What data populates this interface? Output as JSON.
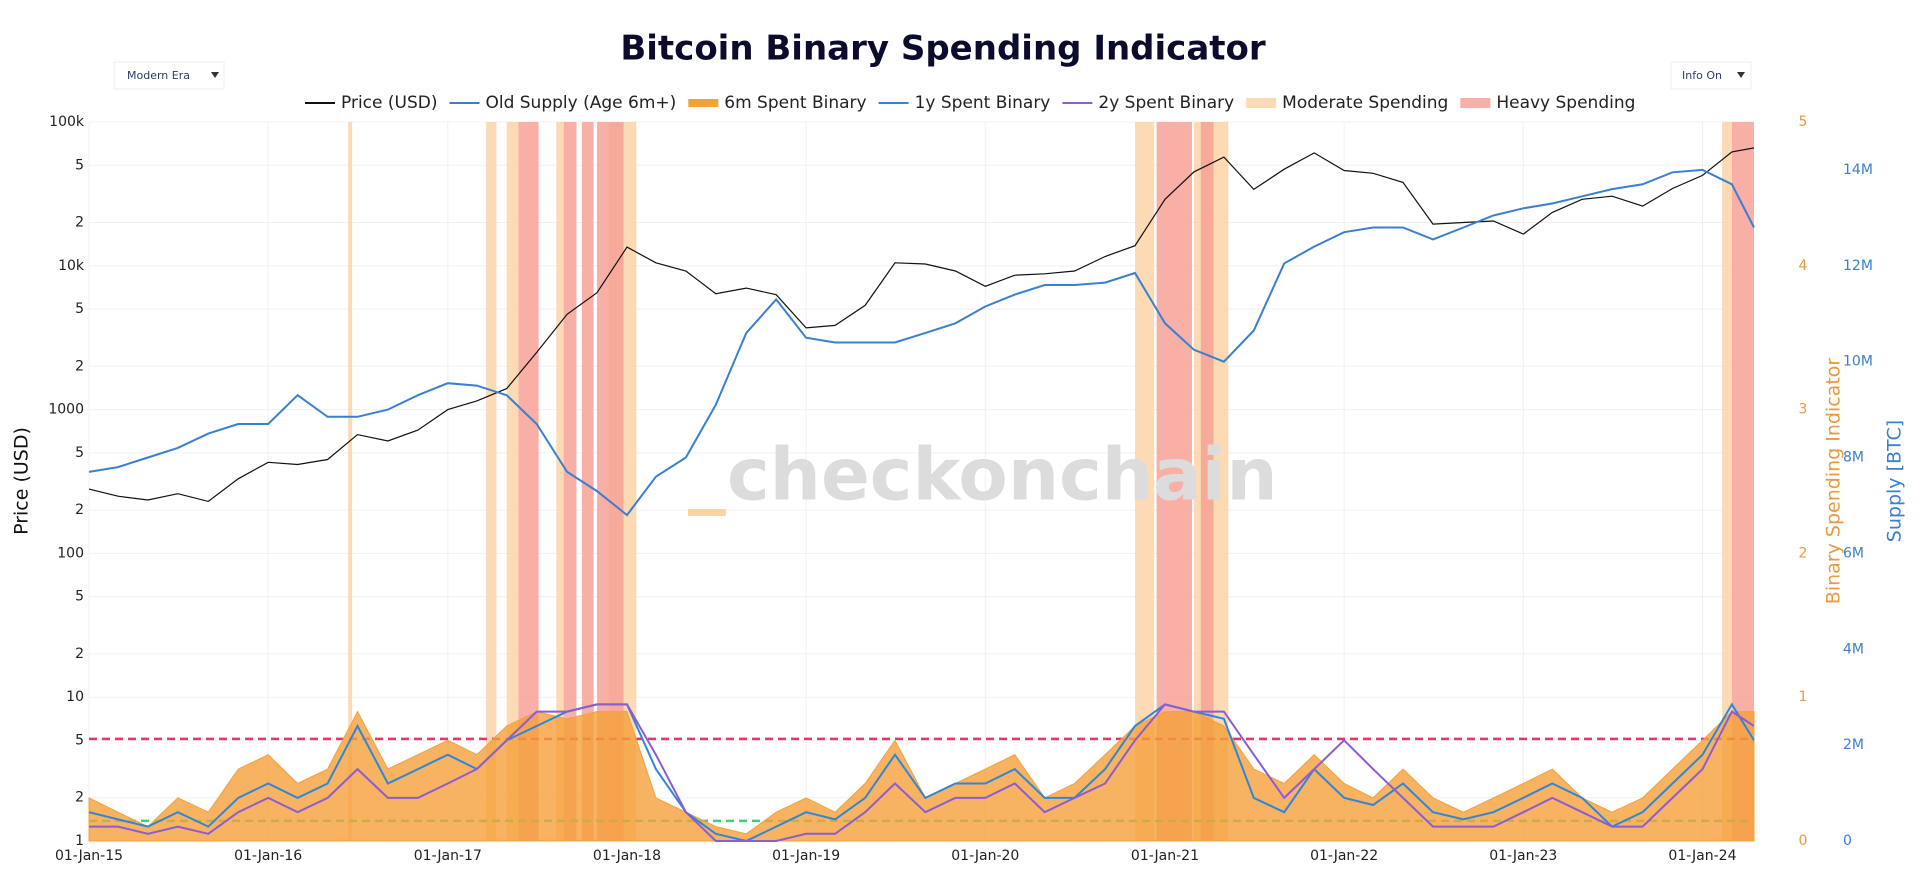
{
  "chart_data": {
    "type": "line",
    "title": "Bitcoin Binary Spending Indicator",
    "watermark": "checkonchain",
    "controls": [
      "Modern Era",
      "Info On"
    ],
    "y_label": "Price (USD)",
    "y2_label": "Binary Spending Indicator",
    "y3_label": "Supply [BTC]",
    "log_y": true,
    "grid": true,
    "xlim": [
      "2015-01-01",
      "2024-04-15"
    ],
    "xticks": [
      {
        "value": "2015-01-01",
        "label": "01-Jan-15"
      },
      {
        "value": "2016-01-01",
        "label": "01-Jan-16"
      },
      {
        "value": "2017-01-01",
        "label": "01-Jan-17"
      },
      {
        "value": "2018-01-01",
        "label": "01-Jan-18"
      },
      {
        "value": "2019-01-01",
        "label": "01-Jan-19"
      },
      {
        "value": "2020-01-01",
        "label": "01-Jan-20"
      },
      {
        "value": "2021-01-01",
        "label": "01-Jan-21"
      },
      {
        "value": "2022-01-01",
        "label": "01-Jan-22"
      },
      {
        "value": "2023-01-01",
        "label": "01-Jan-23"
      },
      {
        "value": "2024-01-01",
        "label": "01-Jan-24"
      }
    ],
    "ylim": [
      1,
      100000
    ],
    "yticks": [
      {
        "value": 100000,
        "label": "100k"
      },
      {
        "value": 50000,
        "label": "5"
      },
      {
        "value": 20000,
        "label": "2"
      },
      {
        "value": 10000,
        "label": "10k"
      },
      {
        "value": 5000,
        "label": "5"
      },
      {
        "value": 2000,
        "label": "2"
      },
      1000,
      {
        "value": 500,
        "label": "5"
      },
      {
        "value": 200,
        "label": "2"
      },
      100,
      {
        "value": 50,
        "label": "5"
      },
      {
        "value": 20,
        "label": "2"
      },
      10,
      5,
      2,
      1
    ],
    "y2lim": [
      0,
      5
    ],
    "y2ticks": [
      0,
      1,
      2,
      3,
      4,
      5
    ],
    "y2_color": "#e89a3c",
    "y3lim": [
      0,
      15000000
    ],
    "y3ticks": [
      {
        "value": 0,
        "label": "0"
      },
      {
        "value": 2000000,
        "label": "2M"
      },
      {
        "value": 4000000,
        "label": "4M"
      },
      {
        "value": 6000000,
        "label": "6M"
      },
      {
        "value": 8000000,
        "label": "8M"
      },
      {
        "value": 10000000,
        "label": "10M"
      },
      {
        "value": 12000000,
        "label": "12M"
      },
      {
        "value": 14000000,
        "label": "14M"
      }
    ],
    "y3_color": "#3a7fd0",
    "x": [
      "2015-01-01",
      "2015-03-01",
      "2015-05-01",
      "2015-07-01",
      "2015-09-01",
      "2015-11-01",
      "2016-01-01",
      "2016-03-01",
      "2016-05-01",
      "2016-07-01",
      "2016-09-01",
      "2016-11-01",
      "2017-01-01",
      "2017-03-01",
      "2017-05-01",
      "2017-07-01",
      "2017-09-01",
      "2017-11-01",
      "2018-01-01",
      "2018-03-01",
      "2018-05-01",
      "2018-07-01",
      "2018-09-01",
      "2018-11-01",
      "2019-01-01",
      "2019-03-01",
      "2019-05-01",
      "2019-07-01",
      "2019-09-01",
      "2019-11-01",
      "2020-01-01",
      "2020-03-01",
      "2020-05-01",
      "2020-07-01",
      "2020-09-01",
      "2020-11-01",
      "2021-01-01",
      "2021-03-01",
      "2021-05-01",
      "2021-07-01",
      "2021-09-01",
      "2021-11-01",
      "2022-01-01",
      "2022-03-01",
      "2022-05-01",
      "2022-07-01",
      "2022-09-01",
      "2022-11-01",
      "2023-01-01",
      "2023-03-01",
      "2023-05-01",
      "2023-07-01",
      "2023-09-01",
      "2023-11-01",
      "2024-01-01",
      "2024-03-01",
      "2024-04-15"
    ],
    "series": [
      {
        "name": "Price (USD)",
        "color": "#111111",
        "axis": "y",
        "style": "line",
        "values": [
          280,
          250,
          235,
          260,
          230,
          330,
          430,
          415,
          450,
          670,
          605,
          720,
          1000,
          1150,
          1400,
          2500,
          4600,
          6500,
          13500,
          10500,
          9200,
          6400,
          7000,
          6300,
          3700,
          3850,
          5300,
          10500,
          10300,
          9200,
          7200,
          8600,
          8800,
          9200,
          11600,
          13800,
          29000,
          45000,
          57000,
          34000,
          47000,
          61000,
          46000,
          44000,
          38000,
          19500,
          20000,
          20500,
          16600,
          23500,
          29000,
          30500,
          26000,
          34500,
          42500,
          62000,
          66000
        ]
      },
      {
        "name": "Old Supply (Age 6m+)",
        "color": "#3a7fd0",
        "axis": "y3",
        "style": "line",
        "values": [
          7700000,
          7800000,
          8000000,
          8200000,
          8500000,
          8700000,
          8700000,
          9300000,
          8850000,
          8850000,
          9000000,
          9300000,
          9550000,
          9500000,
          9300000,
          8700000,
          7700000,
          7300000,
          6800000,
          7600000,
          8000000,
          9100000,
          10600000,
          11300000,
          10500000,
          10400000,
          10400000,
          10400000,
          10600000,
          10800000,
          11150000,
          11400000,
          11600000,
          11600000,
          11650000,
          11850000,
          10800000,
          10250000,
          10000000,
          10650000,
          12050000,
          12400000,
          12700000,
          12800000,
          12800000,
          12550000,
          12800000,
          13050000,
          13200000,
          13300000,
          13450000,
          13600000,
          13700000,
          13950000,
          14000000,
          13700000,
          12800000
        ]
      },
      {
        "name": "6m Spent Binary",
        "color": "#f5a03a",
        "axis": "y2",
        "style": "area",
        "values": [
          0.3,
          0.2,
          0.1,
          0.3,
          0.2,
          0.5,
          0.6,
          0.4,
          0.5,
          0.9,
          0.5,
          0.6,
          0.7,
          0.6,
          0.8,
          0.9,
          0.85,
          0.9,
          0.9,
          0.3,
          0.2,
          0.1,
          0.05,
          0.2,
          0.3,
          0.2,
          0.4,
          0.7,
          0.3,
          0.4,
          0.5,
          0.6,
          0.3,
          0.4,
          0.6,
          0.8,
          0.9,
          0.9,
          0.8,
          0.5,
          0.4,
          0.6,
          0.4,
          0.3,
          0.5,
          0.3,
          0.2,
          0.3,
          0.4,
          0.5,
          0.3,
          0.2,
          0.3,
          0.5,
          0.7,
          0.9,
          0.9
        ]
      },
      {
        "name": "1y Spent Binary",
        "color": "#2f86d8",
        "axis": "y2",
        "style": "line",
        "values": [
          0.2,
          0.15,
          0.1,
          0.2,
          0.1,
          0.3,
          0.4,
          0.3,
          0.4,
          0.8,
          0.4,
          0.5,
          0.6,
          0.5,
          0.7,
          0.8,
          0.9,
          0.95,
          0.95,
          0.5,
          0.2,
          0.05,
          0,
          0.1,
          0.2,
          0.15,
          0.3,
          0.6,
          0.3,
          0.4,
          0.4,
          0.5,
          0.3,
          0.3,
          0.5,
          0.8,
          0.95,
          0.9,
          0.85,
          0.3,
          0.2,
          0.5,
          0.3,
          0.25,
          0.4,
          0.2,
          0.15,
          0.2,
          0.3,
          0.4,
          0.3,
          0.1,
          0.2,
          0.4,
          0.6,
          0.95,
          0.7
        ]
      },
      {
        "name": "2y Spent Binary",
        "color": "#8a5cd6",
        "axis": "y2",
        "style": "line",
        "values": [
          0.1,
          0.1,
          0.05,
          0.1,
          0.05,
          0.2,
          0.3,
          0.2,
          0.3,
          0.5,
          0.3,
          0.3,
          0.4,
          0.5,
          0.7,
          0.9,
          0.9,
          0.95,
          0.95,
          0.6,
          0.2,
          0,
          0,
          0,
          0.05,
          0.05,
          0.2,
          0.4,
          0.2,
          0.3,
          0.3,
          0.4,
          0.2,
          0.3,
          0.4,
          0.7,
          0.95,
          0.9,
          0.9,
          0.6,
          0.3,
          0.5,
          0.7,
          0.5,
          0.3,
          0.1,
          0.1,
          0.1,
          0.2,
          0.3,
          0.2,
          0.1,
          0.1,
          0.3,
          0.5,
          0.9,
          0.8
        ]
      }
    ],
    "zones": [
      {
        "name": "Moderate Spending",
        "color": "#fcd3a6",
        "ranges": [
          [
            "2016-06-12",
            "2016-06-20"
          ],
          [
            "2017-03-20",
            "2017-04-10"
          ],
          [
            "2017-05-01",
            "2017-05-25"
          ],
          [
            "2017-08-10",
            "2017-08-25"
          ],
          [
            "2017-11-25",
            "2018-01-20"
          ],
          [
            "2020-11-01",
            "2020-12-10"
          ],
          [
            "2021-03-01",
            "2021-05-10"
          ],
          [
            "2024-02-10",
            "2024-03-01"
          ]
        ]
      },
      {
        "name": "Heavy Spending",
        "color": "#f7a195",
        "ranges": [
          [
            "2017-05-25",
            "2017-07-05"
          ],
          [
            "2017-08-25",
            "2017-09-20"
          ],
          [
            "2017-10-01",
            "2017-10-25"
          ],
          [
            "2017-11-01",
            "2017-12-25"
          ],
          [
            "2020-12-15",
            "2021-02-25"
          ],
          [
            "2021-03-15",
            "2021-04-10"
          ],
          [
            "2024-03-01",
            "2024-04-15"
          ]
        ]
      }
    ],
    "thresholds": [
      {
        "value": 0.71,
        "color": "#e8336b"
      },
      {
        "value": 0.14,
        "color": "#3fcf7c"
      }
    ]
  }
}
